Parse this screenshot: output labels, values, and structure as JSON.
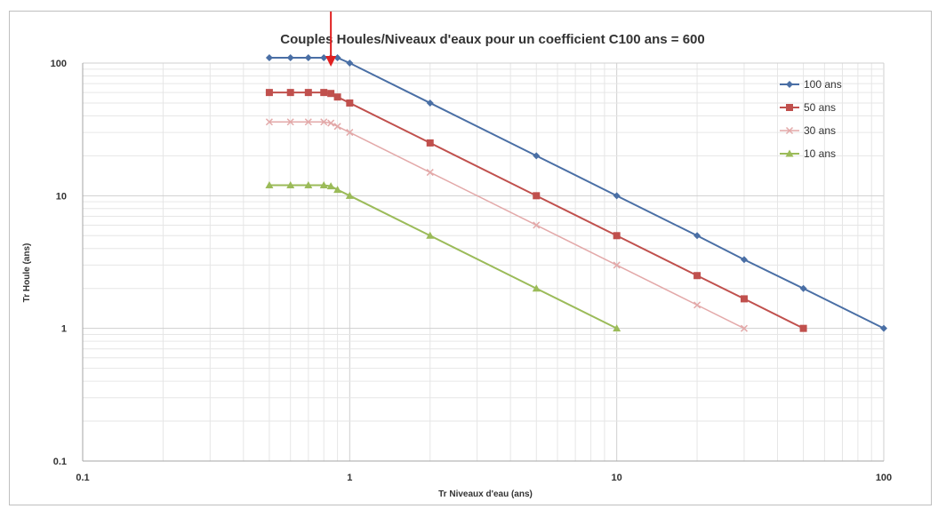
{
  "chart_data": {
    "type": "line",
    "title": "Couples Houles/Niveaux d'eaux pour un coefficient C100 ans = 600",
    "xlabel": "Tr Niveaux d'eau (ans)",
    "ylabel": "Tr Houle (ans)",
    "x_scale": "log",
    "y_scale": "log",
    "xlim": [
      0.1,
      100
    ],
    "ylim": [
      0.1,
      100
    ],
    "x_ticks": [
      "0.1",
      "1",
      "10",
      "100"
    ],
    "y_ticks": [
      "0.1",
      "1",
      "10",
      "100"
    ],
    "grid": true,
    "legend_position": "right",
    "series": [
      {
        "name": "100 ans",
        "color": "#4a6fa5",
        "marker": "diamond",
        "x": [
          0.5,
          0.6,
          0.7,
          0.8,
          0.85,
          0.9,
          1,
          2,
          5,
          10,
          20,
          30,
          50,
          100
        ],
        "y": [
          120,
          120,
          120,
          120,
          118,
          111,
          100,
          50,
          20,
          10,
          5,
          3.3,
          2,
          1
        ]
      },
      {
        "name": "50 ans",
        "color": "#c0504d",
        "marker": "square",
        "x": [
          0.5,
          0.6,
          0.7,
          0.8,
          0.85,
          0.9,
          1,
          2,
          5,
          10,
          20,
          30,
          50
        ],
        "y": [
          60,
          60,
          60,
          60,
          59,
          55.5,
          50,
          25,
          10,
          5,
          2.5,
          1.67,
          1
        ]
      },
      {
        "name": "30 ans",
        "color": "#e3a9a9",
        "marker": "x",
        "x": [
          0.5,
          0.6,
          0.7,
          0.8,
          0.85,
          0.9,
          1,
          2,
          5,
          10,
          20,
          30
        ],
        "y": [
          36,
          36,
          36,
          36,
          35.3,
          33.3,
          30,
          15,
          6,
          3,
          1.5,
          1
        ]
      },
      {
        "name": "10 ans",
        "color": "#9bbb59",
        "marker": "triangle",
        "x": [
          0.5,
          0.6,
          0.7,
          0.8,
          0.85,
          0.9,
          1,
          2,
          5,
          10
        ],
        "y": [
          12,
          12,
          12,
          12,
          11.8,
          11.1,
          10,
          5,
          2,
          1
        ]
      }
    ]
  },
  "annotation": {
    "color": "#e02020"
  }
}
